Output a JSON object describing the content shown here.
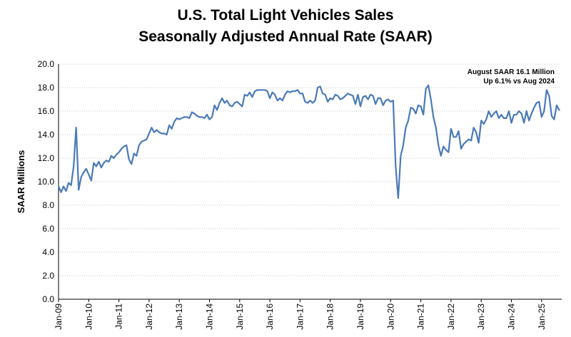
{
  "chart_data": {
    "type": "line",
    "title": [
      "U.S. Total Light Vehicles Sales",
      "Seasonally Adjusted Annual Rate (SAAR)"
    ],
    "ylabel": "SAAR Millions",
    "xlabel": "",
    "ylim": [
      0,
      20
    ],
    "yticks": [
      "0.0",
      "2.0",
      "4.0",
      "6.0",
      "8.0",
      "10.0",
      "12.0",
      "14.0",
      "16.0",
      "18.0",
      "20.0"
    ],
    "xticks": [
      "Jan-09",
      "Jan-10",
      "Jan-11",
      "Jan-12",
      "Jan-13",
      "Jan-14",
      "Jan-15",
      "Jan-16",
      "Jan-17",
      "Jan-18",
      "Jan-19",
      "Jan-20",
      "Jan-21",
      "Jan-22",
      "Jan-23",
      "Jan-24",
      "Jan-25"
    ],
    "annotation": [
      "August SAAR 16.1 Million",
      "Up 6.1% vs Aug 2024"
    ],
    "grid": true,
    "line_color": "#4a7ab8",
    "series": [
      {
        "start": "2009-01",
        "frequency": "monthly",
        "values": [
          9.6,
          9.1,
          9.6,
          9.2,
          9.9,
          9.7,
          11.3,
          14.6,
          9.3,
          10.4,
          10.8,
          11.1,
          10.6,
          10.1,
          11.6,
          11.3,
          11.7,
          11.2,
          11.6,
          11.8,
          11.7,
          12.2,
          12.0,
          12.3,
          12.5,
          12.8,
          13.0,
          13.1,
          11.9,
          11.5,
          12.4,
          12.2,
          13.1,
          13.4,
          13.5,
          13.6,
          14.1,
          14.6,
          14.2,
          14.4,
          14.2,
          14.1,
          14.1,
          14.0,
          14.8,
          14.5,
          15.1,
          15.4,
          15.3,
          15.4,
          15.5,
          15.5,
          15.4,
          15.9,
          15.8,
          15.6,
          15.5,
          15.5,
          15.4,
          15.7,
          15.3,
          15.5,
          16.5,
          16.1,
          16.7,
          17.1,
          16.7,
          16.9,
          16.5,
          16.4,
          16.7,
          16.8,
          16.6,
          16.4,
          17.4,
          17.3,
          17.6,
          17.2,
          17.7,
          17.8,
          17.8,
          17.8,
          17.8,
          17.7,
          17.1,
          17.6,
          17.4,
          16.9,
          17.1,
          16.9,
          17.4,
          17.7,
          17.6,
          17.7,
          17.7,
          17.8,
          17.5,
          17.5,
          16.8,
          16.7,
          16.9,
          16.7,
          16.9,
          18.0,
          18.1,
          17.5,
          17.4,
          16.8,
          17.1,
          17.0,
          17.4,
          17.3,
          17.0,
          17.1,
          17.3,
          17.5,
          17.4,
          17.3,
          16.6,
          17.4,
          16.4,
          17.2,
          17.3,
          17.0,
          17.4,
          17.3,
          16.6,
          17.1,
          17.1,
          16.5,
          16.9,
          17.0,
          16.8,
          16.9,
          11.3,
          8.6,
          12.2,
          13.1,
          14.6,
          15.2,
          16.3,
          16.2,
          15.8,
          16.5,
          16.4,
          15.7,
          17.9,
          18.2,
          17.0,
          15.5,
          14.6,
          13.1,
          12.2,
          13.0,
          12.7,
          12.5,
          14.5,
          13.8,
          13.8,
          14.3,
          12.8,
          13.2,
          13.4,
          13.6,
          13.5,
          14.6,
          14.2,
          13.3,
          15.2,
          14.9,
          15.3,
          16.0,
          15.5,
          15.8,
          16.0,
          15.4,
          15.7,
          15.4,
          15.4,
          16.0,
          15.0,
          15.7,
          15.7,
          16.0,
          15.8,
          15.0,
          16.0,
          15.2,
          15.8,
          16.3,
          16.7,
          16.8,
          15.5,
          16.0,
          17.8,
          17.3,
          15.6,
          15.3,
          16.5,
          16.1
        ]
      }
    ]
  }
}
